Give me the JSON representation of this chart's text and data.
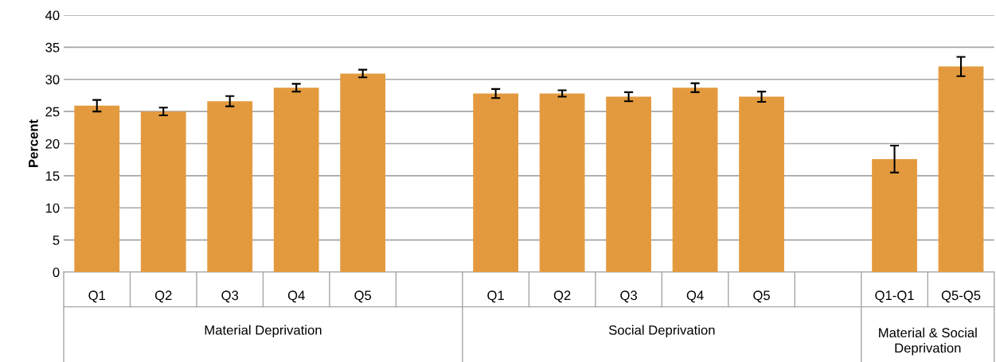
{
  "chart_data": {
    "type": "bar",
    "ylabel": "Percent",
    "categories": [
      "Q1",
      "Q2",
      "Q3",
      "Q4",
      "Q5",
      null,
      "Q1",
      "Q2",
      "Q3",
      "Q4",
      "Q5",
      null,
      "Q1-Q1",
      "Q5-Q5"
    ],
    "series": [
      {
        "color": "#e39a3e",
        "values": [
          25.9,
          25.0,
          26.6,
          28.7,
          30.9,
          null,
          27.8,
          27.8,
          27.3,
          28.7,
          27.3,
          null,
          17.6,
          32.0
        ],
        "errors": [
          0.9,
          0.6,
          0.8,
          0.6,
          0.6,
          null,
          0.7,
          0.5,
          0.7,
          0.7,
          0.8,
          null,
          2.1,
          1.5
        ]
      }
    ],
    "ylim": [
      0,
      40
    ],
    "yticks": [
      0,
      5,
      10,
      15,
      20,
      25,
      30,
      35,
      40
    ],
    "grid": "y",
    "annotations": [
      "Material Deprivation",
      "Social Deprivation",
      "Material & Social Deprivation"
    ]
  }
}
